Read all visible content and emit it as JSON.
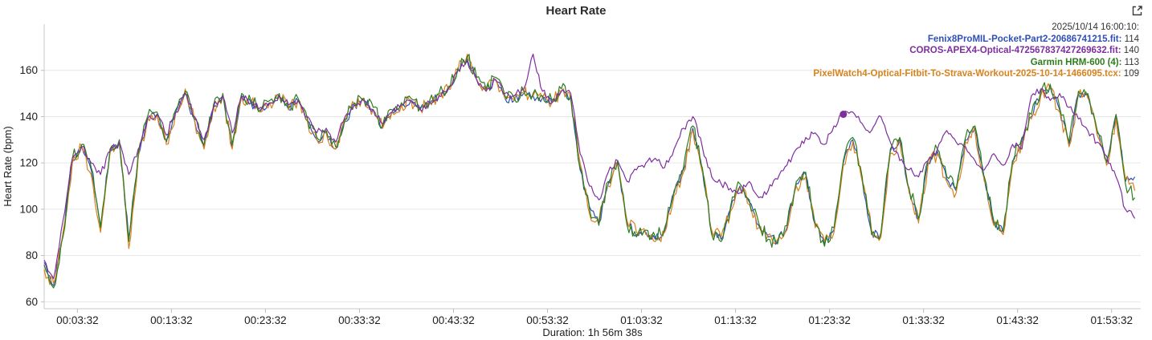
{
  "header": {
    "title": "Heart Rate",
    "expand_icon": "open-in-new-icon"
  },
  "legend": {
    "timestamp": "2025/10/14 16:00:10:",
    "items": [
      {
        "label": "Fenix8ProMIL-Pocket-Part2-20686741215.fit:",
        "value": "114",
        "color": "#2e50b8"
      },
      {
        "label": "COROS-APEX4-Optical-472567837427269632.fit:",
        "value": "140",
        "color": "#7d2f9e"
      },
      {
        "label": "Garmin HRM-600 (4):",
        "value": "113",
        "color": "#2e7d1e"
      },
      {
        "label": "PixelWatch4-Optical-Fitbit-To-Strava-Workout-2025-10-14-1466095.tcx:",
        "value": "109",
        "color": "#d9821b"
      }
    ]
  },
  "chart_data": {
    "type": "line",
    "title": "Heart Rate",
    "xlabel": "Duration: 1h 56m 38s",
    "ylabel": "Heart Rate (bpm)",
    "xlim": [
      0,
      6998
    ],
    "ylim": [
      57,
      180
    ],
    "yticks": [
      60,
      80,
      100,
      120,
      140,
      160
    ],
    "xticks": [
      {
        "s": 212,
        "label": "00:03:32"
      },
      {
        "s": 812,
        "label": "00:13:32"
      },
      {
        "s": 1412,
        "label": "00:23:32"
      },
      {
        "s": 2012,
        "label": "00:33:32"
      },
      {
        "s": 2612,
        "label": "00:43:32"
      },
      {
        "s": 3212,
        "label": "00:53:32"
      },
      {
        "s": 3812,
        "label": "01:03:32"
      },
      {
        "s": 4412,
        "label": "01:13:32"
      },
      {
        "s": 5012,
        "label": "01:23:32"
      },
      {
        "s": 5612,
        "label": "01:33:32"
      },
      {
        "s": 6212,
        "label": "01:43:32"
      },
      {
        "s": 6812,
        "label": "01:53:32"
      }
    ],
    "x_step_s": 60,
    "grid": "horizontal",
    "legend_position": "top-right",
    "marker": {
      "series": "COROS-APEX4-Optical",
      "s": 5100,
      "value": 141,
      "color": "#7d2f9e"
    },
    "series": [
      {
        "name": "Fenix8ProMIL-Pocket-Part2-20686741215.fit",
        "color": "#2e50b8",
        "jitter": 2,
        "values": [
          77,
          67,
          89,
          121,
          127,
          117,
          93,
          125,
          129,
          87,
          123,
          139,
          141,
          129,
          142,
          150,
          138,
          127,
          144,
          149,
          127,
          149,
          146,
          142,
          146,
          149,
          143,
          147,
          138,
          130,
          133,
          126,
          138,
          145,
          147,
          143,
          135,
          142,
          145,
          147,
          143,
          146,
          149,
          152,
          160,
          165,
          156,
          151,
          156,
          148,
          147,
          150,
          149,
          148,
          146,
          151,
          148,
          117,
          101,
          94,
          111,
          120,
          94,
          89,
          90,
          87,
          91,
          107,
          117,
          135,
          117,
          90,
          87,
          100,
          110,
          103,
          93,
          88,
          86,
          92,
          111,
          115,
          93,
          85,
          91,
          120,
          130,
          113,
          90,
          89,
          125,
          130,
          108,
          95,
          120,
          125,
          113,
          108,
          130,
          135,
          113,
          94,
          90,
          120,
          130,
          140,
          150,
          153,
          143,
          128,
          150,
          149,
          133,
          120,
          140,
          112,
          114
        ]
      },
      {
        "name": "PixelWatch4-Optical-Fitbit-To-Strava-Workout-2025-10-14-1466095.tcx",
        "color": "#d9821b",
        "jitter": 3,
        "values": [
          74,
          68,
          90,
          120,
          127,
          115,
          90,
          124,
          128,
          83,
          122,
          139,
          141,
          128,
          142,
          152,
          138,
          126,
          144,
          149,
          126,
          149,
          146,
          142,
          146,
          149,
          143,
          147,
          138,
          130,
          133,
          126,
          138,
          145,
          147,
          143,
          135,
          142,
          145,
          147,
          143,
          146,
          149,
          152,
          160,
          167,
          156,
          151,
          156,
          148,
          147,
          150,
          149,
          148,
          146,
          151,
          148,
          120,
          98,
          95,
          110,
          119,
          95,
          90,
          89,
          86,
          90,
          106,
          116,
          134,
          116,
          91,
          88,
          99,
          109,
          102,
          92,
          89,
          87,
          91,
          110,
          114,
          92,
          86,
          90,
          119,
          129,
          112,
          91,
          88,
          124,
          129,
          107,
          94,
          119,
          124,
          112,
          107,
          129,
          134,
          112,
          93,
          89,
          119,
          129,
          139,
          149,
          152,
          142,
          127,
          149,
          148,
          132,
          119,
          139,
          113,
          108
        ]
      },
      {
        "name": "Garmin HRM-600 (4)",
        "color": "#2e7d1e",
        "jitter": 3,
        "values": [
          76,
          66,
          88,
          122,
          128,
          118,
          92,
          126,
          130,
          86,
          124,
          140,
          142,
          130,
          143,
          151,
          139,
          128,
          145,
          150,
          128,
          150,
          147,
          143,
          147,
          150,
          144,
          148,
          139,
          131,
          134,
          127,
          139,
          146,
          148,
          144,
          136,
          143,
          146,
          148,
          144,
          147,
          150,
          153,
          161,
          166,
          157,
          152,
          157,
          149,
          148,
          151,
          150,
          149,
          147,
          152,
          149,
          118,
          100,
          93,
          112,
          121,
          93,
          88,
          91,
          88,
          92,
          108,
          118,
          136,
          118,
          89,
          86,
          101,
          111,
          104,
          94,
          87,
          85,
          93,
          112,
          116,
          94,
          84,
          92,
          121,
          131,
          114,
          89,
          90,
          126,
          131,
          109,
          96,
          121,
          126,
          114,
          109,
          131,
          136,
          114,
          95,
          91,
          121,
          131,
          141,
          151,
          154,
          144,
          129,
          151,
          150,
          134,
          121,
          141,
          111,
          105
        ]
      },
      {
        "name": "COROS-APEX4-Optical-472567837427269632.fit",
        "color": "#7d2f9e",
        "jitter": 1.6,
        "values": [
          78,
          70,
          95,
          122,
          127,
          120,
          115,
          125,
          129,
          115,
          126,
          139,
          141,
          132,
          142,
          150,
          140,
          130,
          144,
          149,
          133,
          149,
          146,
          144,
          146,
          149,
          145,
          147,
          140,
          133,
          135,
          129,
          140,
          145,
          147,
          143,
          137,
          142,
          145,
          147,
          143,
          146,
          149,
          152,
          160,
          164,
          156,
          151,
          156,
          150,
          149,
          152,
          167,
          151,
          146,
          151,
          150,
          124,
          110,
          104,
          116,
          121,
          112,
          117,
          120,
          122,
          118,
          126,
          135,
          140,
          127,
          114,
          111,
          109,
          107,
          112,
          105,
          108,
          113,
          119,
          126,
          131,
          133,
          128,
          136,
          141,
          142,
          137,
          134,
          140,
          129,
          121,
          117,
          114,
          121,
          126,
          134,
          129,
          127,
          121,
          117,
          124,
          119,
          128,
          126,
          149,
          152,
          147,
          150,
          144,
          139,
          134,
          129,
          123,
          114,
          100,
          96
        ]
      }
    ]
  }
}
